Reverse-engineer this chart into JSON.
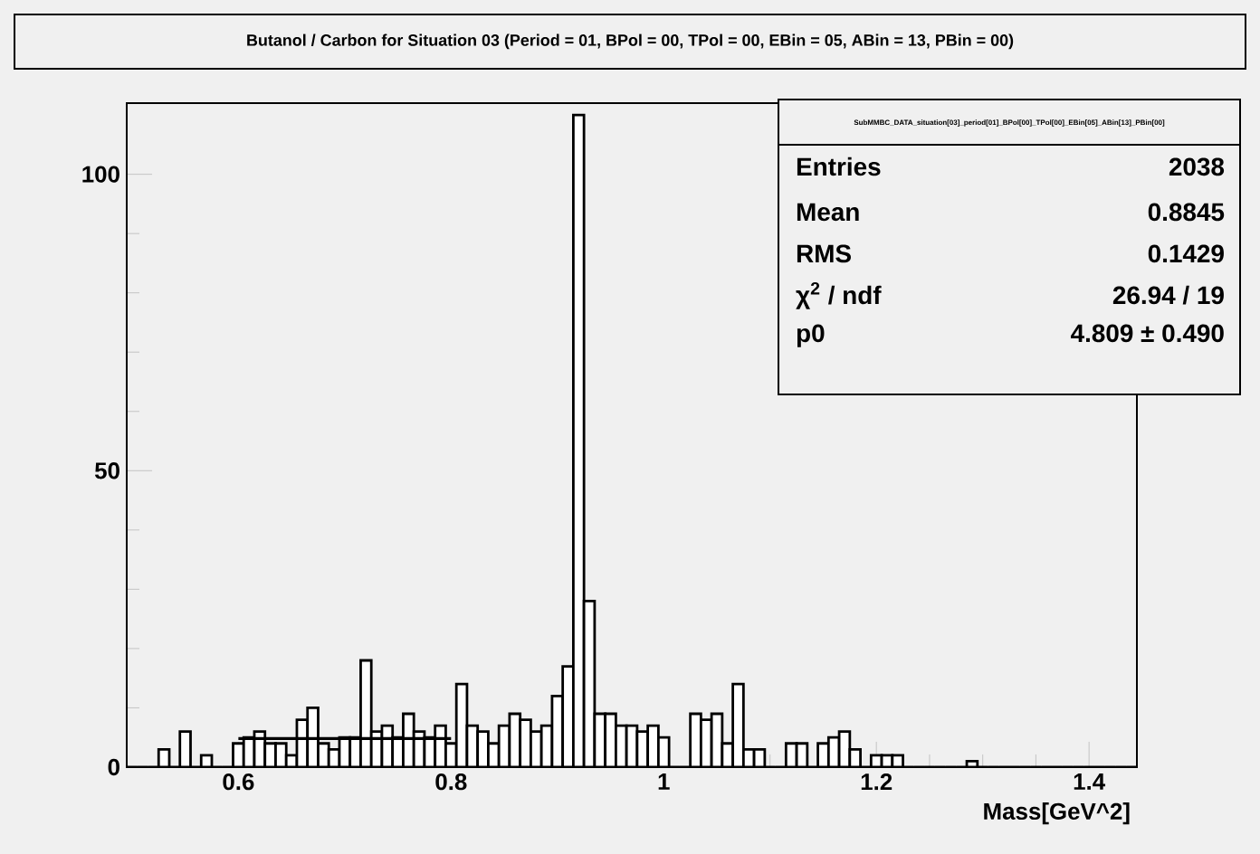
{
  "chart_data": {
    "type": "histogram",
    "title": "Butanol / Carbon for Situation 03 (Period = 01, BPol = 00, TPol = 00, EBin = 05, ABin = 13, PBin = 00)",
    "xlabel": "Mass[GeV^2]",
    "xlim": [
      0.495,
      1.445
    ],
    "ylim": [
      0,
      112
    ],
    "xticks": [
      0.6,
      0.8,
      {
        "value": 1,
        "label": "1"
      },
      1.2,
      1.4
    ],
    "yticks": [
      0,
      50,
      100
    ],
    "series": [
      {
        "type": "histogram",
        "color": "#ffffff",
        "bins": [
          0.495,
          0.505,
          0.515,
          0.525,
          0.535,
          0.545,
          0.555,
          0.565,
          0.575,
          0.585,
          0.595,
          0.605,
          0.615,
          0.625,
          0.635,
          0.645,
          0.655,
          0.665,
          0.675,
          0.685,
          0.695,
          0.705,
          0.715,
          0.725,
          0.735,
          0.745,
          0.755,
          0.765,
          0.775,
          0.785,
          0.795,
          0.805,
          0.815,
          0.825,
          0.835,
          0.845,
          0.855,
          0.865,
          0.875,
          0.885,
          0.895,
          0.905,
          0.915,
          0.925,
          0.935,
          0.945,
          0.955,
          0.965,
          0.975,
          0.985,
          0.995,
          1.005,
          1.015,
          1.025,
          1.035,
          1.045,
          1.055,
          1.065,
          1.075,
          1.085,
          1.095,
          1.105,
          1.115,
          1.125,
          1.135,
          1.145,
          1.155,
          1.165,
          1.175,
          1.185,
          1.195,
          1.205,
          1.215,
          1.225,
          1.235,
          1.245,
          1.255,
          1.265,
          1.275,
          1.285,
          1.295,
          1.305,
          1.315,
          1.325,
          1.335,
          1.345,
          1.355,
          1.365,
          1.375,
          1.385,
          1.395,
          1.405,
          1.415,
          1.425,
          1.435,
          1.445
        ],
        "values": [
          0,
          0,
          0,
          3,
          0,
          6,
          0,
          2,
          0,
          0,
          4,
          5,
          6,
          4,
          4,
          2,
          8,
          10,
          4,
          3,
          5,
          5,
          18,
          6,
          7,
          5,
          9,
          6,
          5,
          7,
          4,
          14,
          7,
          6,
          4,
          7,
          9,
          8,
          6,
          7,
          12,
          17,
          110,
          28,
          9,
          9,
          7,
          7,
          6,
          7,
          5,
          0,
          0,
          9,
          8,
          9,
          4,
          14,
          3,
          3,
          0,
          0,
          4,
          4,
          0,
          4,
          5,
          6,
          3,
          0,
          2,
          2,
          2,
          0,
          0,
          0,
          0,
          0,
          0,
          1,
          0,
          0,
          0,
          0,
          0,
          0,
          0,
          0,
          0,
          0,
          0,
          0,
          0,
          0,
          0
        ]
      },
      {
        "type": "line",
        "color": "#000000",
        "x": [
          0.6,
          0.8
        ],
        "values": [
          4.809,
          4.809
        ]
      }
    ],
    "annotations": [
      "SubMMBC_DATA_situation[03]_period[01]_BPol[00]_TPol[00]_EBin[05]_ABin[13]_PBin[00]",
      "Entries",
      "2038",
      "Mean",
      "0.8845",
      "RMS",
      "0.1429",
      "χ$^{2}$ / ndf",
      "26.94 / 19",
      "p0",
      "4.809 ± 0.490"
    ],
    "marker": "none"
  }
}
